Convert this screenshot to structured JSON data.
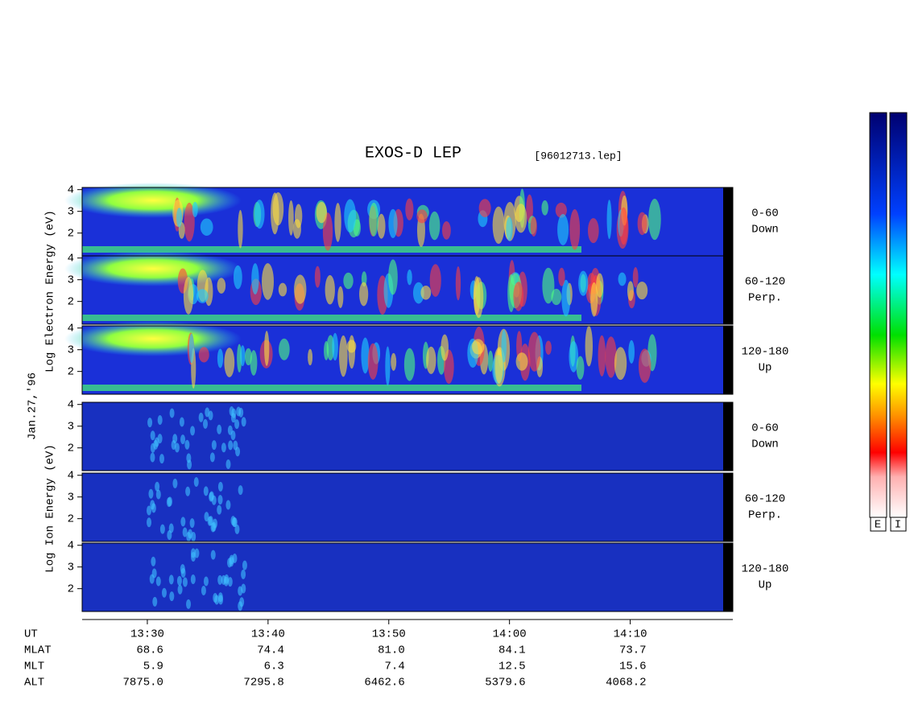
{
  "chart_data": {
    "type": "spectrogram",
    "title": "EXOS-D LEP",
    "file": "[96012713.lep]",
    "date_label": "Jan.27,'96",
    "electron_axis_label": "Log  Electron  Energy (eV)",
    "ion_axis_label": "Log  Ion  Energy (eV)",
    "ylim": [
      0.95,
      4.1
    ],
    "yticks": [
      2,
      3,
      4
    ],
    "panels": [
      {
        "species": "electron",
        "label": [
          "0-60",
          "Down"
        ]
      },
      {
        "species": "electron",
        "label": [
          "60-120",
          "Perp."
        ]
      },
      {
        "species": "electron",
        "label": [
          "120-180",
          "Up"
        ]
      },
      {
        "species": "ion",
        "label": [
          "0-60",
          "Down"
        ]
      },
      {
        "species": "ion",
        "label": [
          "60-120",
          "Perp."
        ]
      },
      {
        "species": "ion",
        "label": [
          "120-180",
          "Up"
        ]
      }
    ],
    "xlim": [
      804.6,
      858.5
    ],
    "xticks": [
      {
        "value": 810,
        "label": "13:30"
      },
      {
        "value": 820,
        "label": "13:40"
      },
      {
        "value": 830,
        "label": "13:50"
      },
      {
        "value": 840,
        "label": "14:00"
      },
      {
        "value": 850,
        "label": "14:10"
      }
    ],
    "orbit_rows": [
      {
        "name": "UT"
      },
      {
        "name": "MLAT",
        "values": [
          "68.6",
          "74.4",
          "81.0",
          "84.1",
          "73.7"
        ]
      },
      {
        "name": "MLT",
        "values": [
          "5.9",
          "6.3",
          "7.4",
          "12.5",
          "15.6"
        ]
      },
      {
        "name": "ALT",
        "values": [
          "7875.0",
          "7295.8",
          "6462.6",
          "5379.6",
          "4068.2"
        ]
      }
    ],
    "colorbar_labels": [
      "E",
      "I"
    ]
  }
}
